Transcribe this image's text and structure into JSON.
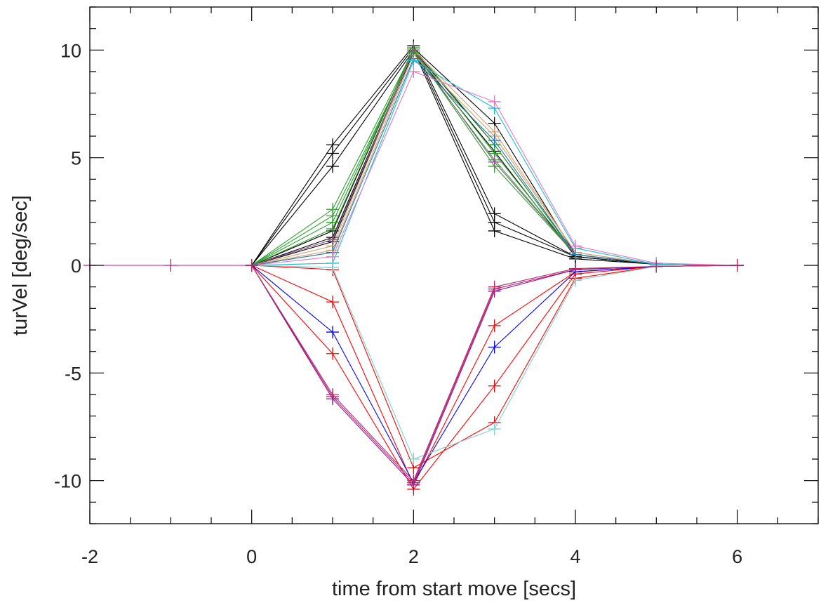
{
  "chart_data": {
    "type": "line",
    "title": "",
    "xlabel": "time from start move [secs]",
    "ylabel": "turVel [deg/sec]",
    "xlim": [
      -2,
      7
    ],
    "ylim": [
      -12,
      12
    ],
    "grid": false,
    "x_ticks": [
      -2,
      0,
      2,
      4,
      6
    ],
    "x_tick_labels": [
      "-2",
      "0",
      "2",
      "4",
      "6"
    ],
    "y_ticks": [
      -10,
      -5,
      0,
      5,
      10
    ],
    "y_tick_labels": [
      "-10",
      "-5",
      "0",
      "5",
      "10"
    ],
    "marker": "plus",
    "series": [
      {
        "color": "#000000",
        "x": [
          0,
          1,
          2,
          3,
          4,
          5,
          6
        ],
        "values": [
          0,
          5.6,
          10.2,
          2.4,
          0.4,
          0.05,
          0
        ]
      },
      {
        "color": "#000000",
        "x": [
          0,
          1,
          2,
          3,
          4,
          5,
          6
        ],
        "values": [
          0,
          5.2,
          10.1,
          2.0,
          0.4,
          0.05,
          0
        ]
      },
      {
        "color": "#000000",
        "x": [
          0,
          1,
          2,
          3,
          4,
          5,
          6
        ],
        "values": [
          0,
          4.6,
          10.0,
          1.6,
          0.3,
          0.05,
          0
        ]
      },
      {
        "color": "#000000",
        "x": [
          0,
          1,
          2,
          3,
          4,
          5,
          6
        ],
        "values": [
          0,
          1.6,
          10.1,
          6.6,
          0.5,
          0.05,
          0
        ]
      },
      {
        "color": "#000000",
        "x": [
          0,
          1,
          2,
          3,
          4,
          5,
          6
        ],
        "values": [
          0,
          1.3,
          10.0,
          5.6,
          0.5,
          0.05,
          0
        ]
      },
      {
        "color": "#000000",
        "x": [
          0,
          1,
          2,
          3,
          4,
          5,
          6
        ],
        "values": [
          0,
          1.1,
          9.9,
          5.3,
          0.4,
          0.05,
          0
        ]
      },
      {
        "color": "#2ca02c",
        "x": [
          0,
          1,
          2,
          3,
          4,
          5,
          6
        ],
        "values": [
          0,
          2.6,
          10.0,
          4.6,
          0.5,
          0.05,
          0
        ]
      },
      {
        "color": "#2ca02c",
        "x": [
          0,
          1,
          2,
          3,
          4,
          5,
          6
        ],
        "values": [
          0,
          2.3,
          9.9,
          4.9,
          0.5,
          0.05,
          0
        ]
      },
      {
        "color": "#2ca02c",
        "x": [
          0,
          1,
          2,
          3,
          4,
          5,
          6
        ],
        "values": [
          0,
          2.0,
          10.0,
          5.2,
          0.5,
          0.05,
          0
        ]
      },
      {
        "color": "#2ca02c",
        "x": [
          0,
          1,
          2,
          3,
          4,
          5,
          6
        ],
        "values": [
          0,
          1.7,
          10.1,
          5.6,
          0.5,
          0.05,
          0
        ]
      },
      {
        "color": "#d2a070",
        "x": [
          0,
          1,
          2,
          3,
          4,
          5,
          6
        ],
        "values": [
          0,
          0.9,
          10.0,
          6.2,
          0.6,
          0.05,
          0
        ]
      },
      {
        "color": "#d2a070",
        "x": [
          0,
          1,
          2,
          3,
          4,
          5,
          6
        ],
        "values": [
          0,
          0.7,
          9.8,
          6.0,
          0.6,
          0.05,
          0
        ]
      },
      {
        "color": "#8c5a8c",
        "x": [
          0,
          1,
          2,
          3,
          4,
          5,
          6
        ],
        "values": [
          0,
          1.2,
          10.0,
          4.8,
          0.5,
          0.05,
          0
        ]
      },
      {
        "color": "#1f77b4",
        "x": [
          0,
          1,
          2,
          3,
          4,
          5,
          6
        ],
        "values": [
          0,
          0.6,
          9.6,
          5.8,
          0.5,
          0.05,
          0
        ]
      },
      {
        "color": "#17becf",
        "x": [
          0,
          1,
          2,
          3,
          4,
          5,
          6
        ],
        "values": [
          0,
          0.1,
          9.5,
          7.3,
          0.8,
          0.05,
          0
        ]
      },
      {
        "color": "#e377c2",
        "x": [
          0,
          1,
          2,
          3,
          4,
          5,
          6
        ],
        "values": [
          0,
          0.4,
          9.0,
          7.6,
          0.9,
          0.1,
          0
        ]
      },
      {
        "color": "#ff0000",
        "x": [
          0,
          1,
          2,
          3,
          4,
          5,
          6
        ],
        "values": [
          0,
          -0.2,
          -9.4,
          -7.3,
          -0.6,
          -0.05,
          0
        ]
      },
      {
        "color": "#ff0000",
        "x": [
          0,
          1,
          2,
          3,
          4,
          5,
          6
        ],
        "values": [
          0,
          -1.7,
          -10.2,
          -2.8,
          -0.3,
          -0.05,
          0
        ]
      },
      {
        "color": "#ff0000",
        "x": [
          0,
          1,
          2,
          3,
          4,
          5,
          6
        ],
        "values": [
          0,
          -4.1,
          -10.4,
          -5.6,
          -0.4,
          -0.05,
          0
        ]
      },
      {
        "color": "#0000ff",
        "x": [
          0,
          1,
          2,
          3,
          4,
          5,
          6
        ],
        "values": [
          0,
          -3.1,
          -10.1,
          -3.8,
          -0.3,
          -0.05,
          0
        ]
      },
      {
        "color": "#7fd0d0",
        "x": [
          0,
          1,
          2,
          3,
          4,
          5,
          6
        ],
        "values": [
          0,
          -0.1,
          -9.0,
          -7.6,
          -0.7,
          -0.05,
          0
        ]
      },
      {
        "color": "#c71585",
        "x": [
          -2,
          -1,
          0,
          1,
          2,
          3,
          4,
          5,
          6
        ],
        "values": [
          0,
          0,
          0,
          -6.1,
          -10.1,
          -1.1,
          -0.2,
          -0.05,
          0
        ]
      },
      {
        "color": "#8b1a8b",
        "x": [
          0,
          1,
          2,
          3,
          4,
          5,
          6
        ],
        "values": [
          0,
          -6.2,
          -10.2,
          -1.2,
          -0.2,
          -0.05,
          0
        ]
      },
      {
        "color": "#b03060",
        "x": [
          0,
          1,
          2,
          3,
          4,
          5,
          6
        ],
        "values": [
          0,
          -6.0,
          -10.0,
          -1.0,
          -0.15,
          -0.05,
          0
        ]
      }
    ]
  }
}
